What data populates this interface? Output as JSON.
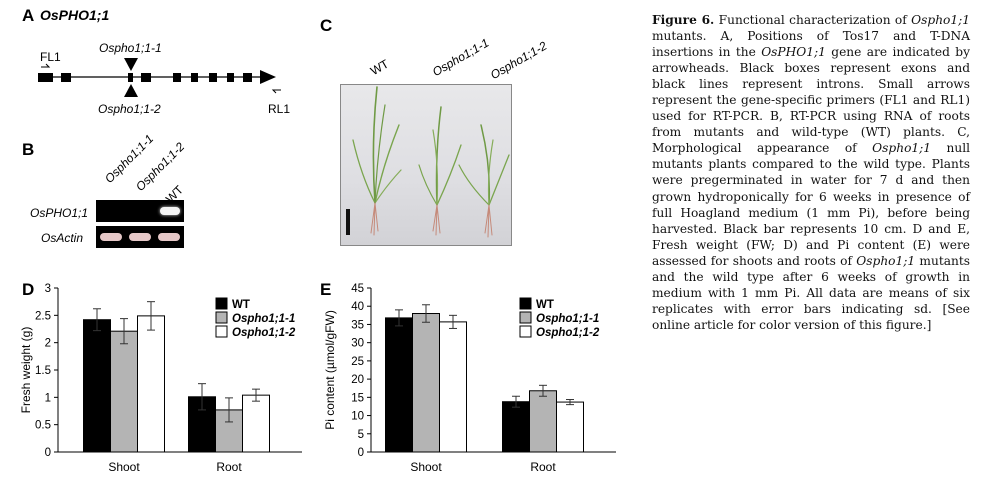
{
  "panel_a": {
    "label": "A",
    "gene": "OsPHO1;1",
    "insert1": "Ospho1;1-1",
    "insert2": "Ospho1;1-2",
    "primer_f": "FL1",
    "primer_r": "RL1"
  },
  "panel_b": {
    "label": "B",
    "lanes": [
      "Ospho1;1-1",
      "Ospho1;1-2",
      "WT"
    ],
    "rows": [
      "OsPHO1;1",
      "OsActin"
    ]
  },
  "panel_c": {
    "label": "C",
    "samples": [
      "WT",
      "Ospho1;1-1",
      "Ospho1;1-2"
    ]
  },
  "legend": {
    "series": [
      "WT",
      "Ospho1;1-1",
      "Ospho1;1-2"
    ],
    "colors": [
      "#000000",
      "#b4b4b4",
      "#ffffff"
    ]
  },
  "chart_data": [
    {
      "panel": "D",
      "type": "bar",
      "ylabel": "Fresh weight (g)",
      "categories": [
        "Shoot",
        "Root"
      ],
      "ylim": [
        0,
        3
      ],
      "yticks": [
        "0",
        "0.5",
        "1",
        "1.5",
        "2",
        "2.5",
        "3"
      ],
      "legend_position": "top-right",
      "series": [
        {
          "name": "WT",
          "values": [
            2.42,
            1.01
          ],
          "errors": [
            0.2,
            0.24
          ]
        },
        {
          "name": "Ospho1;1-1",
          "values": [
            2.21,
            0.77
          ],
          "errors": [
            0.23,
            0.22
          ]
        },
        {
          "name": "Ospho1;1-2",
          "values": [
            2.49,
            1.04
          ],
          "errors": [
            0.26,
            0.11
          ]
        }
      ]
    },
    {
      "panel": "E",
      "type": "bar",
      "ylabel": "Pi content (µmol/gFW)",
      "categories": [
        "Shoot",
        "Root"
      ],
      "ylim": [
        0,
        45
      ],
      "yticks": [
        "0",
        "5",
        "10",
        "15",
        "20",
        "25",
        "30",
        "35",
        "40",
        "45"
      ],
      "legend_position": "top-right",
      "series": [
        {
          "name": "WT",
          "values": [
            36.8,
            13.8
          ],
          "errors": [
            2.2,
            1.5
          ]
        },
        {
          "name": "Ospho1;1-1",
          "values": [
            38.0,
            16.8
          ],
          "errors": [
            2.4,
            1.5
          ]
        },
        {
          "name": "Ospho1;1-2",
          "values": [
            35.7,
            13.7
          ],
          "errors": [
            1.8,
            0.7
          ]
        }
      ]
    }
  ],
  "caption": {
    "parts": [
      {
        "t": "Figure 6.",
        "s": "b"
      },
      {
        "t": " Functional characterization of ",
        "s": ""
      },
      {
        "t": "Ospho1;1",
        "s": "i"
      },
      {
        "t": " mutants. A, Positions of Tos17 and T-DNA insertions in the ",
        "s": ""
      },
      {
        "t": "OsPHO1;1",
        "s": "i"
      },
      {
        "t": " gene are indicated by arrowheads. Black boxes represent exons and black lines represent introns. Small arrows represent the gene-specific primers (FL1 and RL1) used for RT-PCR. B, RT-PCR using RNA of roots from mutants and wild-type (WT) plants. C, Morphological appearance of ",
        "s": ""
      },
      {
        "t": "Ospho1;1",
        "s": "i"
      },
      {
        "t": " null mutants plants compared to the wild type. Plants were pregerminated in water for 7 d and then grown hydroponically for 6 weeks in presence of full Hoagland medium (1 mm Pi), before being harvested. Black bar represents 10 cm. D and E, Fresh weight (FW; D) and Pi content (E) were assessed for shoots and roots of ",
        "s": ""
      },
      {
        "t": "Ospho1;1",
        "s": "i"
      },
      {
        "t": " mutants and the wild type after 6 weeks of growth in medium with 1 mm Pi. All data are means of six replicates with error bars indicating sd. [See online article for color version of this figure.]",
        "s": ""
      }
    ]
  }
}
